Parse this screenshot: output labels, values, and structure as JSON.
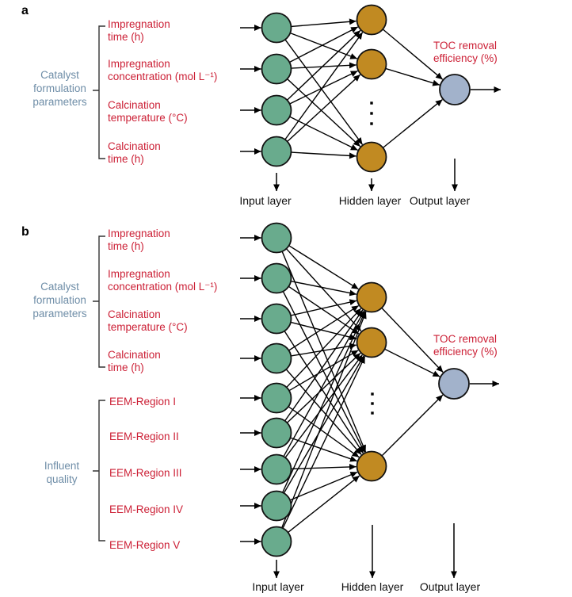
{
  "colors": {
    "input_node": "#69ab8d",
    "hidden_node": "#c18a22",
    "output_node": "#a2b2cb",
    "node_stroke": "#111111",
    "edge": "#000000",
    "label_red": "#cc2036",
    "label_slate": "#6e8da7",
    "label_black": "#111111"
  },
  "panel_a": {
    "letter": "a",
    "structure": {
      "input_nodes": 4,
      "hidden_nodes_shown": 3,
      "output_nodes": 1
    },
    "catalyst_group": {
      "label": "Catalyst\nformulation\nparameters",
      "inputs": [
        "Impregnation\ntime (h)",
        "Impregnation\nconcentration (mol L⁻¹)",
        "Calcination\ntemperature (°C)",
        "Calcination\ntime (h)"
      ]
    },
    "output_label": "TOC removal\nefficiency (%)",
    "layers": {
      "input": "Input layer",
      "hidden": "Hidden layer",
      "output": "Output layer"
    }
  },
  "panel_b": {
    "letter": "b",
    "structure": {
      "input_nodes": 9,
      "hidden_nodes_shown": 3,
      "output_nodes": 1
    },
    "catalyst_group": {
      "label": "Catalyst\nformulation\nparameters",
      "inputs": [
        "Impregnation\ntime (h)",
        "Impregnation\nconcentration (mol L⁻¹)",
        "Calcination\ntemperature (°C)",
        "Calcination\ntime (h)"
      ]
    },
    "influent_group": {
      "label": "Influent\nquality",
      "inputs": [
        "EEM-Region I",
        "EEM-Region II",
        "EEM-Region III",
        "EEM-Region IV",
        "EEM-Region V"
      ]
    },
    "output_label": "TOC removal\nefficiency (%)",
    "layers": {
      "input": "Input layer",
      "hidden": "Hidden layer",
      "output": "Output layer"
    }
  }
}
